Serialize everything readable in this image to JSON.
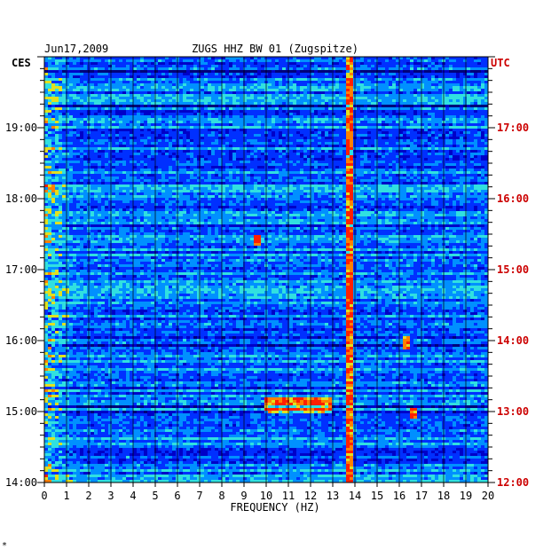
{
  "header": {
    "date": "Jun17,2009",
    "station": "ZUGS HHZ BW 01 (Zugspitze)"
  },
  "left_axis": {
    "tz": "CES",
    "color": "#000000"
  },
  "right_axis": {
    "tz": "UTC",
    "color": "#cc0000"
  },
  "footer": {
    "mark": "*"
  },
  "chart_data": {
    "type": "heatmap",
    "title": "ZUGS HHZ BW 01 (Zugspitze)",
    "date": "Jun17,2009",
    "xlabel": "FREQUENCY (HZ)",
    "xlim": [
      0,
      20
    ],
    "x_ticks": [
      "0",
      "1",
      "2",
      "3",
      "4",
      "5",
      "6",
      "7",
      "8",
      "9",
      "10",
      "11",
      "12",
      "13",
      "14",
      "15",
      "16",
      "17",
      "18",
      "19",
      "20"
    ],
    "y_left_label": "CES",
    "y_left_ticks": [
      "19:00",
      "18:00",
      "17:00",
      "16:00",
      "15:00",
      "14:00"
    ],
    "y_right_label": "UTC",
    "y_right_ticks": [
      "17:00",
      "16:00",
      "15:00",
      "14:00",
      "13:00",
      "12:00"
    ],
    "ylim_ces": [
      "14:00",
      "20:00"
    ],
    "colormap": [
      "#00007a",
      "#0000c8",
      "#0030ff",
      "#0090ff",
      "#30e0e0",
      "#e0e020",
      "#ff8000",
      "#ff2000"
    ],
    "dominant_color": "#0000c8",
    "features": [
      {
        "label": "persistent line",
        "freq_hz": 13.8,
        "from_ces": "14:00",
        "to_ces": "20:00"
      },
      {
        "label": "broadband low-frequency energy",
        "freq_range_hz": [
          0,
          1.5
        ]
      },
      {
        "label": "transient",
        "freq_hz": 9.6,
        "time_ces": "17:25"
      },
      {
        "label": "transient",
        "freq_hz": 16.3,
        "time_ces": "15:58"
      },
      {
        "label": "transient",
        "freq_hz": 16.6,
        "time_ces": "14:59"
      },
      {
        "label": "transient",
        "freq_range_hz": [
          10,
          13
        ],
        "time_ces": "15:05"
      }
    ]
  }
}
